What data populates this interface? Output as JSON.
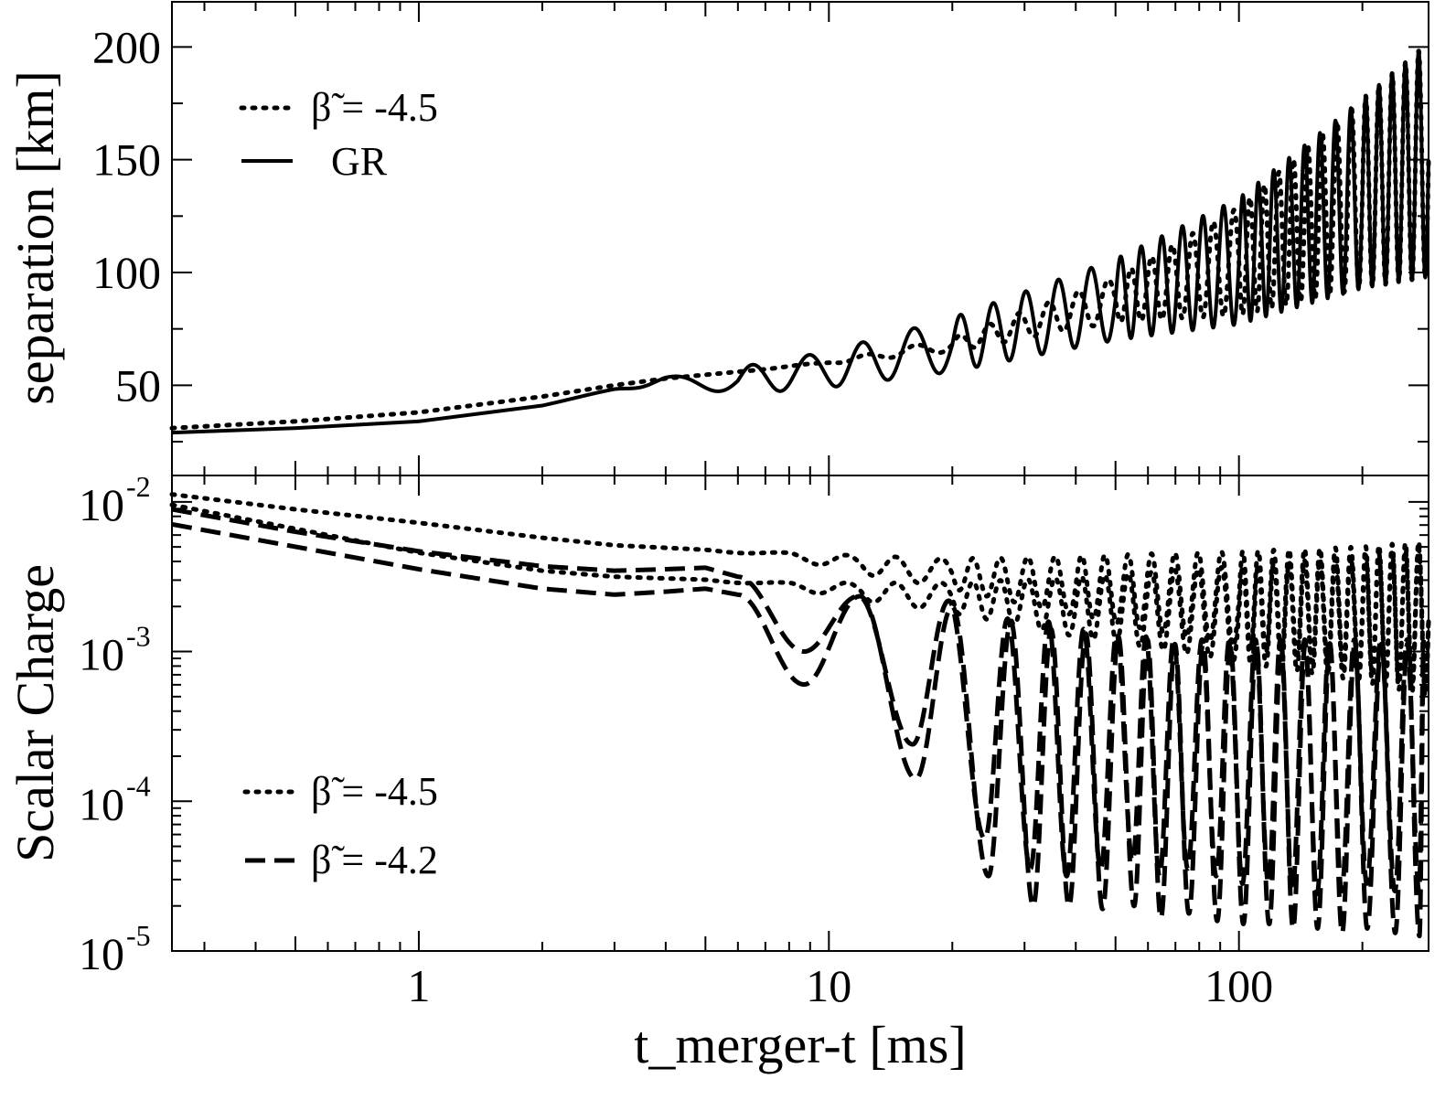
{
  "chart_data": [
    {
      "type": "line",
      "panel": "top",
      "title": "",
      "xlabel": "t_merger-t [ms]",
      "ylabel": "separation [km]",
      "xscale": "log",
      "xlim": [
        0.25,
        290
      ],
      "ylim": [
        10,
        220
      ],
      "yticks": [
        "50",
        "100",
        "150",
        "200"
      ],
      "ytick_values": [
        50,
        100,
        150,
        200
      ],
      "legend": {
        "placement": "top-left",
        "entries": [
          {
            "label": "β̃ = -4.5",
            "style": "dotted"
          },
          {
            "label": "GR",
            "style": "solid"
          }
        ]
      },
      "series": [
        {
          "name": "GR",
          "style": "solid",
          "model": "inspiral",
          "t_knots": [
            0.25,
            0.5,
            1,
            2,
            3,
            4,
            6,
            10,
            20,
            50,
            100,
            200,
            290
          ],
          "center_km": [
            29,
            31,
            34,
            41,
            48,
            52,
            52,
            57,
            68,
            88,
            105,
            135,
            150
          ],
          "amplitude_km": [
            0,
            0,
            0,
            0,
            0.5,
            1.5,
            6,
            8,
            12,
            18,
            28,
            42,
            52
          ],
          "phase_knots": [
            0,
            0,
            0,
            0,
            0.4,
            1.2,
            2.0,
            3.6,
            6.0,
            11.0,
            17.0,
            25.0,
            30.0
          ]
        },
        {
          "name": "β̃ = -4.5",
          "style": "dotted",
          "model": "inspiral",
          "t_knots": [
            0.25,
            0.5,
            1,
            2,
            3,
            4,
            6,
            10,
            20,
            50,
            100,
            200,
            290
          ],
          "center_km": [
            31,
            34,
            38,
            45,
            50,
            53,
            56,
            60,
            68,
            88,
            105,
            135,
            150
          ],
          "amplitude_km": [
            0,
            0,
            0,
            0,
            0,
            0,
            0,
            0.5,
            3,
            10,
            24,
            42,
            52
          ],
          "phase_knots": [
            0,
            0,
            0,
            0,
            0,
            0.2,
            0.6,
            1.5,
            4.0,
            9.5,
            15.5,
            24.0,
            29.0
          ]
        }
      ]
    },
    {
      "type": "line",
      "panel": "bottom",
      "title": "",
      "xlabel": "t_merger-t [ms]",
      "ylabel": "Scalar Charge",
      "xscale": "log",
      "yscale": "log",
      "xlim": [
        0.25,
        290
      ],
      "ylim": [
        1e-05,
        0.015
      ],
      "xticks": [
        "1",
        "10",
        "100"
      ],
      "xtick_values": [
        1,
        10,
        100
      ],
      "ytick_bases": [
        "10",
        "10",
        "10",
        "10"
      ],
      "ytick_exponents": [
        "-2",
        "-3",
        "-4",
        "-5"
      ],
      "ytick_values": [
        0.01,
        0.001,
        0.0001,
        1e-05
      ],
      "legend": {
        "placement": "bottom-left",
        "entries": [
          {
            "label": "β̃ = -4.5",
            "style": "dotted"
          },
          {
            "label": "β̃ = -4.2",
            "style": "dashed"
          }
        ]
      },
      "series": [
        {
          "name": "β̃ = -4.5 (star 1)",
          "style": "dotted",
          "model": "log-osc",
          "t_knots": [
            0.25,
            0.5,
            1,
            2,
            3,
            5,
            8,
            12,
            20,
            40,
            100,
            200,
            290
          ],
          "log10_center": [
            -1.95,
            -2.05,
            -2.14,
            -2.24,
            -2.29,
            -2.32,
            -2.36,
            -2.42,
            -2.48,
            -2.56,
            -2.65,
            -2.72,
            -2.76
          ],
          "log10_amp": [
            0,
            0,
            0,
            0,
            0,
            0,
            0.02,
            0.06,
            0.1,
            0.2,
            0.32,
            0.42,
            0.5
          ],
          "phase_knots": [
            0,
            0,
            0,
            0,
            0.2,
            0.6,
            1.3,
            2.5,
            4.5,
            9.0,
            16.0,
            24.0,
            29.0
          ]
        },
        {
          "name": "β̃ = -4.5 (star 2)",
          "style": "dotted",
          "model": "log-osc",
          "t_knots": [
            0.25,
            0.5,
            1,
            2,
            3,
            5,
            8,
            12,
            20,
            40,
            100,
            200,
            290
          ],
          "log10_center": [
            -2.02,
            -2.18,
            -2.34,
            -2.46,
            -2.5,
            -2.52,
            -2.56,
            -2.6,
            -2.64,
            -2.7,
            -2.75,
            -2.78,
            -2.8
          ],
          "log10_amp": [
            0,
            0,
            0,
            0,
            0,
            0,
            0.02,
            0.06,
            0.1,
            0.2,
            0.32,
            0.42,
            0.5
          ],
          "phase_knots": [
            0,
            0,
            0,
            0,
            0.2,
            0.6,
            1.3,
            2.5,
            4.5,
            9.0,
            16.0,
            24.0,
            29.0
          ]
        },
        {
          "name": "β̃ = -4.2 (star 1)",
          "style": "dashed",
          "model": "peaks",
          "t_knots": [
            0.25,
            0.5,
            1,
            2,
            3,
            4,
            5,
            6
          ],
          "log10_values": [
            -2.05,
            -2.2,
            -2.33,
            -2.43,
            -2.46,
            -2.45,
            -2.44,
            -2.5
          ],
          "peak_log10": [
            -2.63,
            -2.66,
            -2.78,
            -2.8,
            -2.85,
            -2.88,
            -2.9,
            -2.92
          ],
          "trough_t": [
            8.7,
            16,
            24,
            31,
            38,
            46,
            55,
            64,
            75,
            88,
            102,
            118,
            135,
            155,
            178,
            205,
            240,
            275
          ],
          "trough_log10": [
            -3.0,
            -3.62,
            -4.25,
            -4.45,
            -4.5,
            -4.45,
            -4.4,
            -4.5,
            -4.45,
            -4.5,
            -4.55,
            -4.55,
            -4.6,
            -4.62,
            -4.6,
            -4.55,
            -4.6,
            -4.6
          ]
        },
        {
          "name": "β̃ = -4.2 (star 2)",
          "style": "dashed",
          "model": "peaks",
          "t_knots": [
            0.25,
            0.5,
            1,
            2,
            3,
            4,
            5,
            6
          ],
          "log10_values": [
            -2.15,
            -2.3,
            -2.45,
            -2.58,
            -2.62,
            -2.6,
            -2.58,
            -2.62
          ],
          "peak_log10": [
            -2.63,
            -2.7,
            -2.8,
            -2.85,
            -2.88,
            -2.9,
            -2.92,
            -2.95
          ],
          "trough_t": [
            8.7,
            16.3,
            24.5,
            31.5,
            38.5,
            46.5,
            55.5,
            64.5,
            75.5,
            88.5,
            102.5,
            118.5,
            135.5,
            155.5,
            178.5,
            205.5,
            240.5,
            275.5
          ],
          "trough_log10": [
            -3.22,
            -3.85,
            -4.5,
            -4.7,
            -4.7,
            -4.72,
            -4.7,
            -4.78,
            -4.75,
            -4.8,
            -4.82,
            -4.82,
            -4.85,
            -4.85,
            -4.88,
            -4.85,
            -4.88,
            -4.9
          ]
        }
      ]
    }
  ]
}
